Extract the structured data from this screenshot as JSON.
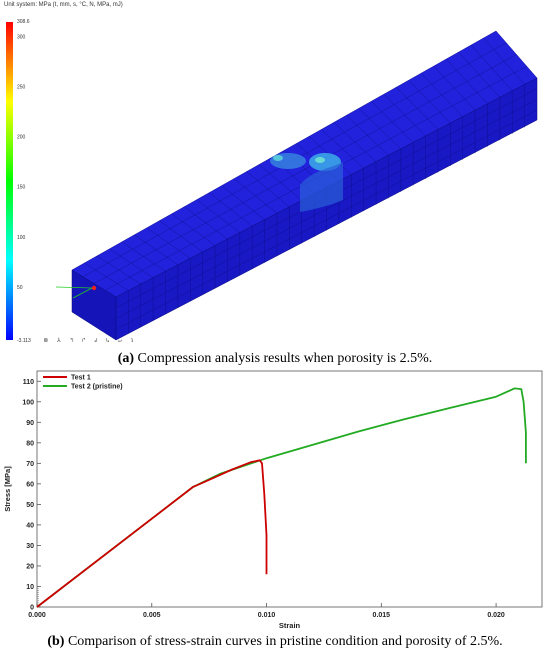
{
  "figure_a": {
    "unit_system": "Unit system: MPa (t, mm, s, °C, N, MPa, mJ)",
    "colorbar": {
      "max_label": "308.6",
      "min_label": "-3.113",
      "ticks": [
        "300",
        "250",
        "200",
        "150",
        "100",
        "50"
      ],
      "colors": [
        "#ff0000",
        "#ff8000",
        "#ffff00",
        "#80ff00",
        "#00ff00",
        "#00ff80",
        "#00ffff",
        "#0080ff",
        "#0000ff"
      ]
    },
    "beam_color": "#1a1acc",
    "caption_label": "(a)",
    "caption_text": " Compression analysis results when porosity is 2.5%.",
    "toolbar_icons": [
      "view-fit-icon",
      "axes-icon",
      "view-front-icon",
      "view-back-icon",
      "view-left-icon",
      "view-right-icon",
      "view-top-icon",
      "view-bottom-icon"
    ]
  },
  "figure_b": {
    "caption_label": "(b)",
    "caption_text": " Comparison of stress-strain curves in pristine condition and porosity of 2.5%."
  },
  "chart_data": {
    "type": "line",
    "title": "",
    "xlabel": "Strain",
    "ylabel": "Stress [MPa]",
    "xlim": [
      0.0,
      0.022
    ],
    "ylim": [
      0,
      115
    ],
    "x_ticks": [
      "0.000",
      "0.005",
      "0.010",
      "0.015",
      "0.020"
    ],
    "y_ticks": [
      "0",
      "10",
      "20",
      "30",
      "40",
      "50",
      "60",
      "70",
      "80",
      "90",
      "100",
      "110"
    ],
    "grid": false,
    "legend_position": "top-left",
    "series": [
      {
        "name": "Test 1",
        "color": "#cc0000",
        "points": [
          [
            0.0,
            0
          ],
          [
            0.0068,
            58.5
          ],
          [
            0.0075,
            62
          ],
          [
            0.0085,
            67
          ],
          [
            0.0093,
            70.5
          ],
          [
            0.0097,
            71.5
          ],
          [
            0.0098,
            70
          ],
          [
            0.0099,
            55
          ],
          [
            0.01,
            35
          ],
          [
            0.01,
            16
          ]
        ]
      },
      {
        "name": "Test 2 (pristine)",
        "color": "#22aa22",
        "points": [
          [
            0.0,
            0
          ],
          [
            0.0068,
            58.5
          ],
          [
            0.008,
            65
          ],
          [
            0.01,
            72.5
          ],
          [
            0.012,
            79
          ],
          [
            0.014,
            85.5
          ],
          [
            0.016,
            91.5
          ],
          [
            0.018,
            97
          ],
          [
            0.02,
            102.5
          ],
          [
            0.0208,
            106.5
          ],
          [
            0.0211,
            106.2
          ],
          [
            0.0212,
            100
          ],
          [
            0.0213,
            85
          ],
          [
            0.0213,
            70
          ]
        ]
      }
    ]
  }
}
